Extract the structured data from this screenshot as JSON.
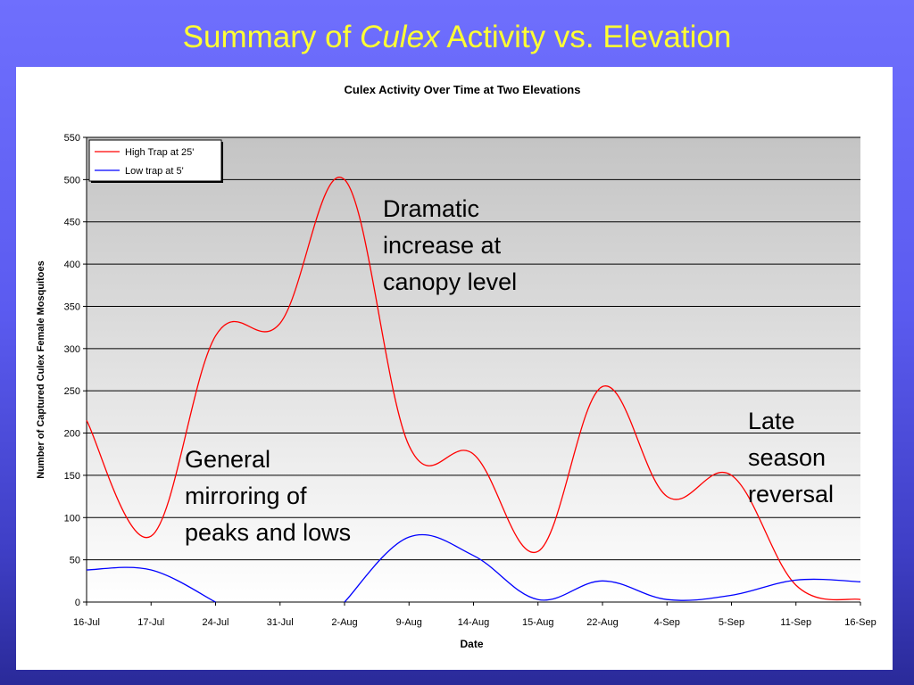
{
  "slide": {
    "title_before": "Summary of ",
    "title_italic": "Culex",
    "title_after": " Activity vs. Elevation"
  },
  "colors": {
    "title": "#ffff33",
    "high_series": "#ff0000",
    "low_series": "#0000ff"
  },
  "annotations": {
    "dramatic": [
      "Dramatic",
      "increase at",
      "canopy level"
    ],
    "general": [
      "General",
      "mirroring of",
      "peaks and lows"
    ],
    "late": [
      "Late",
      "season",
      "reversal"
    ]
  },
  "chart_data": {
    "type": "line",
    "title": "Culex Activity Over Time at Two Elevations",
    "xlabel": "Date",
    "ylabel": "Number of Captured Culex Female Mosquitoes",
    "categories": [
      "16-Jul",
      "17-Jul",
      "24-Jul",
      "31-Jul",
      "2-Aug",
      "9-Aug",
      "14-Aug",
      "15-Aug",
      "22-Aug",
      "4-Sep",
      "5-Sep",
      "11-Sep",
      "16-Sep"
    ],
    "ylim": [
      0,
      550
    ],
    "yticks": [
      0,
      50,
      100,
      150,
      200,
      250,
      300,
      350,
      400,
      450,
      500,
      550
    ],
    "smoothed": true,
    "grid": "horizontal",
    "legend_position": "top-left",
    "series": [
      {
        "name": "High Trap at 25'",
        "color": "#ff0000",
        "values": [
          215,
          78,
          315,
          330,
          500,
          185,
          175,
          60,
          255,
          125,
          150,
          20,
          3
        ]
      },
      {
        "name": "Low trap at 5'",
        "color": "#0000ff",
        "values": [
          38,
          38,
          0,
          null,
          0,
          77,
          55,
          3,
          25,
          3,
          8,
          26,
          24
        ]
      }
    ]
  }
}
